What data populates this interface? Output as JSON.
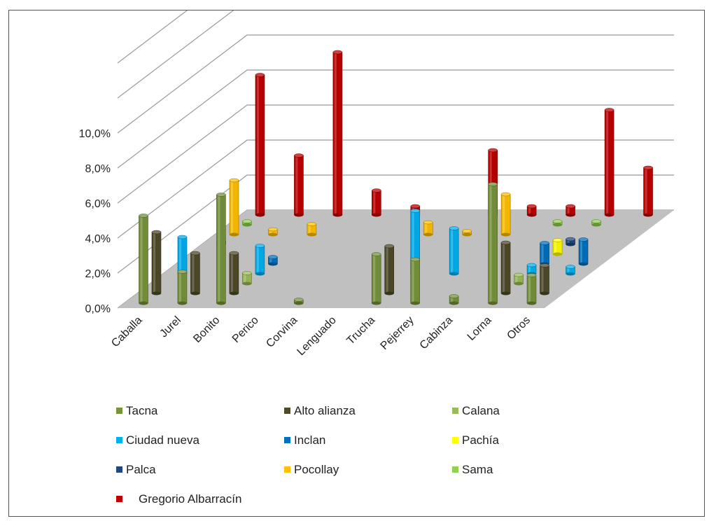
{
  "chart_data": {
    "type": "bar",
    "subtype": "3d-clustered-column",
    "title": "",
    "xlabel": "",
    "ylabel": "",
    "ylim": [
      0,
      10
    ],
    "y_tick_labels": [
      "0,0%",
      "2,0%",
      "4,0%",
      "6,0%",
      "8,0%",
      "10,0%"
    ],
    "grid": true,
    "legend_position": "bottom",
    "categories": [
      "Caballa",
      "Jurel",
      "Bonito",
      "Perico",
      "Corvina",
      "Lenguado",
      "Trucha",
      "Pejerrey",
      "Cabinza",
      "Lorna",
      "Otros"
    ],
    "series": [
      {
        "name": "Tacna",
        "color": "#77933C",
        "values": [
          5.0,
          1.8,
          6.2,
          0,
          0.2,
          0,
          2.8,
          2.5,
          0.4,
          6.8,
          1.6
        ]
      },
      {
        "name": "Alto alianza",
        "color": "#4F4A2A",
        "values": [
          3.5,
          2.3,
          2.3,
          0,
          0,
          0,
          2.7,
          0,
          0,
          2.9,
          1.6
        ]
      },
      {
        "name": "Calana",
        "color": "#9BBB59",
        "values": [
          0,
          0,
          0.6,
          0,
          0,
          0,
          0,
          0,
          0,
          0.5,
          0
        ]
      },
      {
        "name": "Ciudad nueva",
        "color": "#00B0F0",
        "values": [
          2.1,
          0,
          1.6,
          0,
          0,
          0,
          3.6,
          2.6,
          0,
          0.5,
          0.4
        ]
      },
      {
        "name": "Inclan",
        "color": "#0070C0",
        "values": [
          0,
          0,
          0.4,
          0,
          0,
          0,
          0,
          0,
          0,
          1.2,
          1.4
        ]
      },
      {
        "name": "Pachía",
        "color": "#FFFF00",
        "values": [
          0,
          0,
          0,
          0,
          0,
          0,
          0,
          0,
          0,
          0.8,
          0
        ]
      },
      {
        "name": "Palca",
        "color": "#1F497D",
        "values": [
          0.2,
          0,
          0,
          0,
          0,
          0,
          0,
          0,
          0,
          0.3,
          0
        ]
      },
      {
        "name": "Pocollay",
        "color": "#FFC000",
        "values": [
          3.1,
          0.3,
          0.6,
          0,
          0,
          0.7,
          0.2,
          2.3,
          0,
          0,
          0
        ]
      },
      {
        "name": "Sama",
        "color": "#92D050",
        "values": [
          0.2,
          0,
          0,
          0,
          0,
          0,
          0,
          0,
          0.2,
          0.2,
          0
        ]
      },
      {
        "name": "Gregorio Albarracín",
        "color": "#C00000",
        "values": [
          8.0,
          3.4,
          9.3,
          1.4,
          0.5,
          0,
          3.7,
          0.5,
          0.5,
          6.0,
          2.7
        ]
      }
    ]
  }
}
